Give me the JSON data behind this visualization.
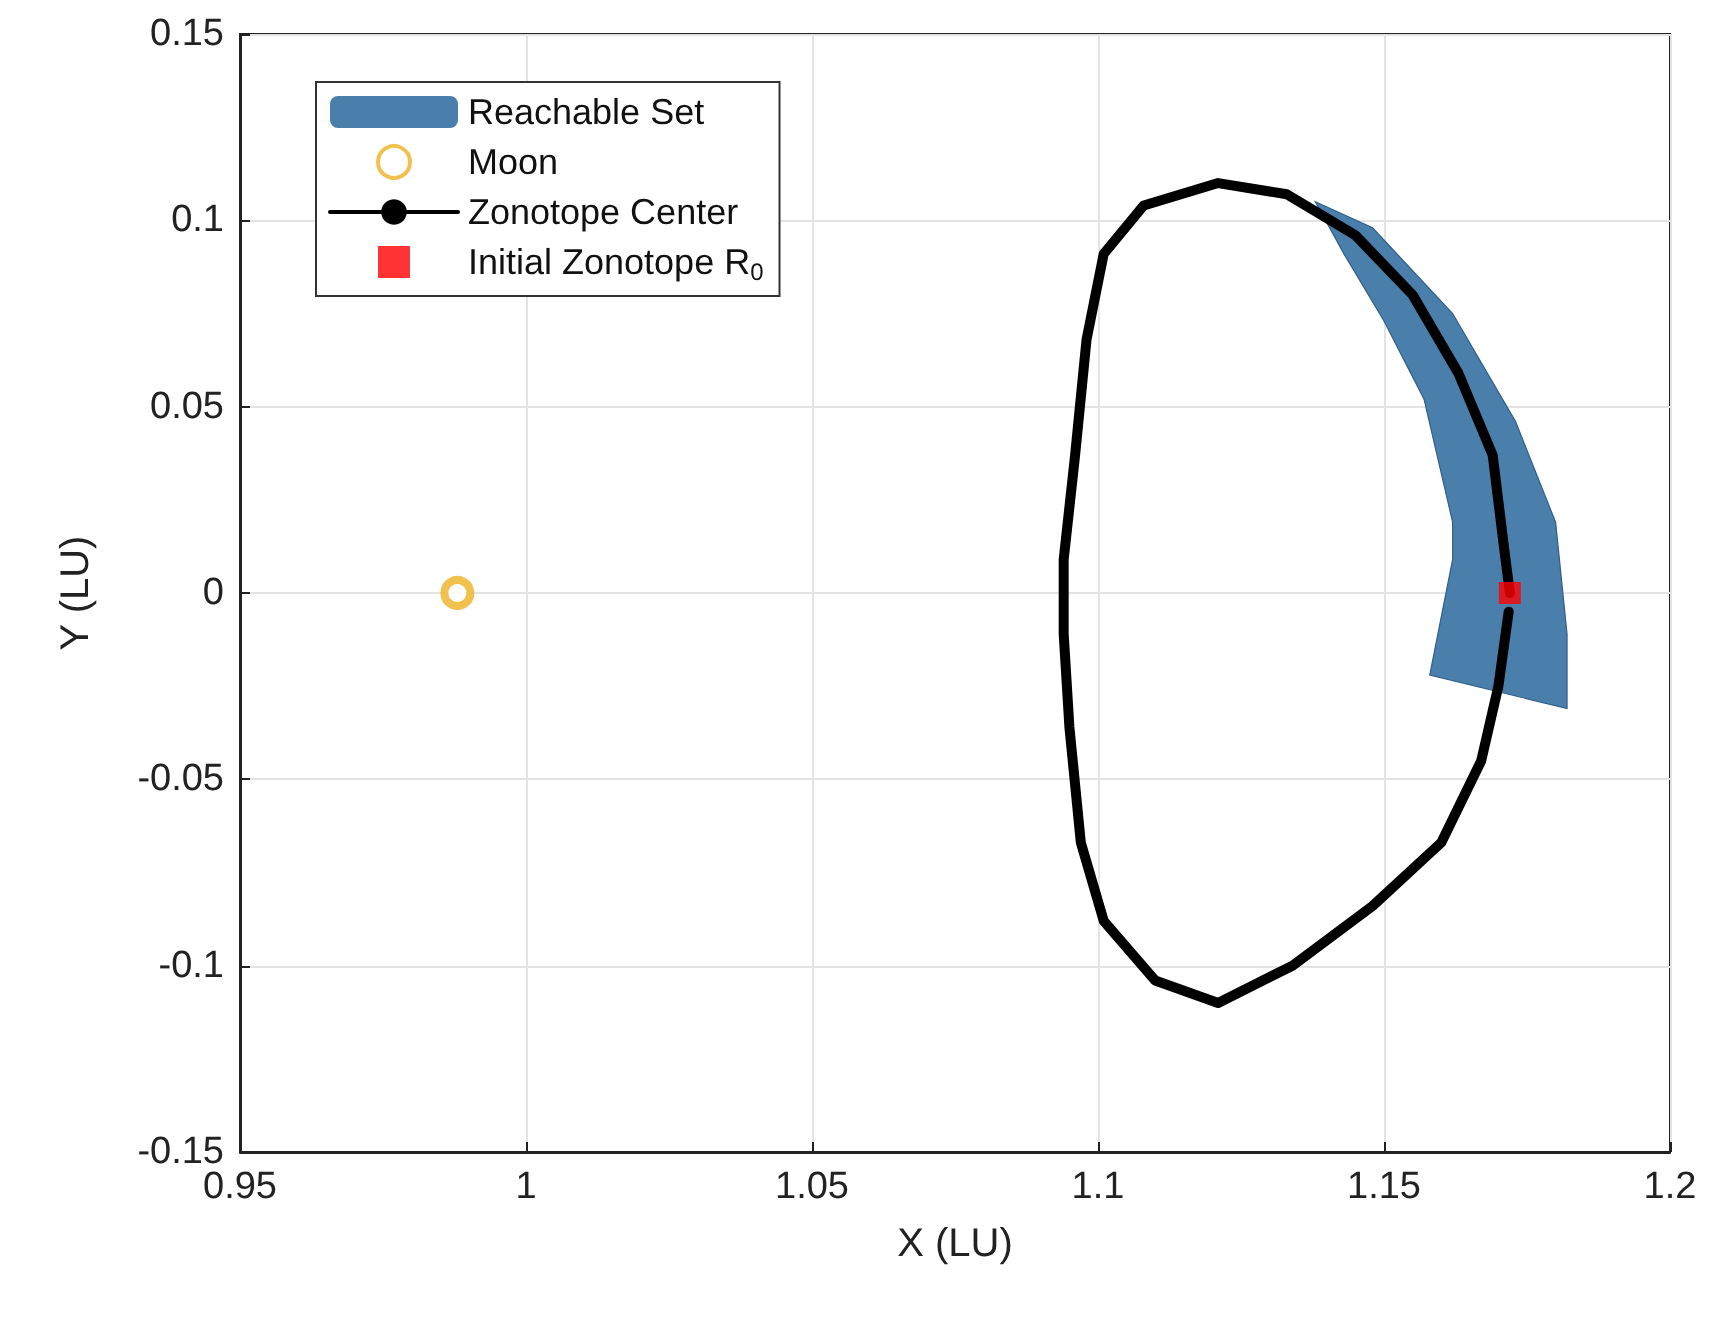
{
  "chart_data": {
    "type": "line",
    "xlabel": "X (LU)",
    "ylabel": "Y (LU)",
    "xlim": [
      0.95,
      1.2
    ],
    "ylim": [
      -0.15,
      0.15
    ],
    "xticks": [
      0.95,
      1,
      1.05,
      1.1,
      1.15,
      1.2
    ],
    "yticks": [
      -0.15,
      -0.1,
      -0.05,
      0,
      0.05,
      0.1,
      0.15
    ],
    "grid": true,
    "legend": "top left",
    "series": [
      {
        "type": "area",
        "name": "Reachable Set",
        "color": "#4a7eab",
        "x": [
          1.138,
          1.148,
          1.162,
          1.173,
          1.18,
          1.182,
          1.182,
          1.158,
          1.162,
          1.162,
          1.157,
          1.15,
          1.143,
          1.138
        ],
        "values": [
          0.105,
          0.098,
          0.075,
          0.046,
          0.019,
          -0.011,
          -0.031,
          -0.022,
          0.009,
          0.019,
          0.052,
          0.073,
          0.091,
          0.105
        ]
      },
      {
        "type": "scatter",
        "name": "Moon",
        "color": "#edb120",
        "marker": "circle",
        "x": [
          0.988
        ],
        "values": [
          0
        ]
      },
      {
        "name": "Zonotope Center",
        "color": "#000000",
        "line_style": "solid",
        "marker": "none",
        "x": [
          1.172,
          1.171,
          1.169,
          1.163,
          1.155,
          1.145,
          1.133,
          1.121,
          1.108,
          1.101,
          1.098,
          1.096,
          1.094,
          1.094,
          1.095,
          1.097,
          1.101,
          1.11,
          1.121,
          1.134,
          1.148,
          1.16,
          1.167,
          1.17,
          1.1718
        ],
        "values": [
          0,
          0.012,
          0.037,
          0.059,
          0.08,
          0.096,
          0.107,
          0.11,
          0.104,
          0.091,
          0.068,
          0.037,
          0.009,
          -0.011,
          -0.036,
          -0.067,
          -0.088,
          -0.104,
          -0.11,
          -0.1,
          -0.084,
          -0.067,
          -0.045,
          -0.025,
          -0.005
        ]
      },
      {
        "type": "scatter",
        "name": "Initial Zonotope R$_{0}$",
        "color": "#ff0000",
        "marker": "square",
        "x": [
          1.172
        ],
        "values": [
          0
        ]
      }
    ]
  }
}
